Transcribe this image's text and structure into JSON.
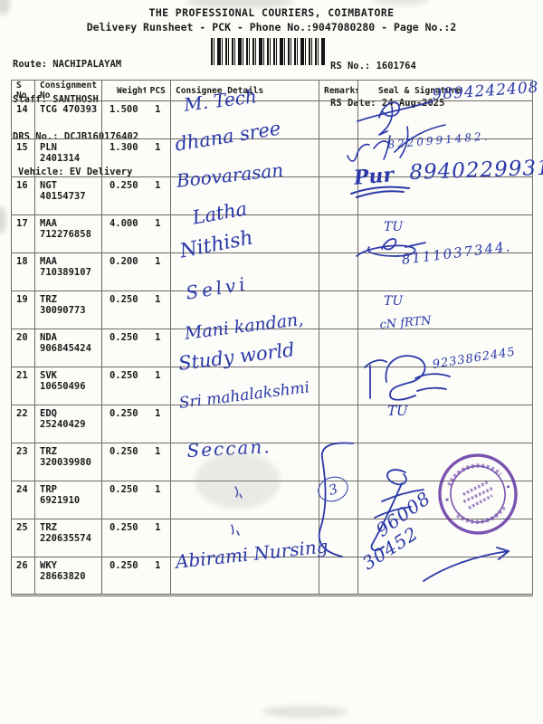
{
  "header": {
    "title": "THE PROFESSIONAL COURIERS, COIMBATORE",
    "subtitle": "Delivery Runsheet - PCK - Phone No.:9047080280 - Page No.:2",
    "stray_mark": "-"
  },
  "info": {
    "route": "Route: NACHIPALAYAM",
    "staff": "Staff: SANTHOSH",
    "drs_no": "DRS No.: DCJB160176402",
    "vehicle": "Vehicle: EV Delivery",
    "rs_no": "RS No.: 1601764",
    "rs_date": "RS Date: 24-Aug-2025"
  },
  "table": {
    "columns": [
      "S No",
      "Consignment No",
      "Weight",
      "PCS",
      "Consignee Details",
      "Remarks",
      "Seal & Signature"
    ],
    "rows": [
      {
        "sno": "14",
        "consignment": "TCG 470393",
        "weight": "1.500",
        "pcs": "1"
      },
      {
        "sno": "15",
        "consignment": "PLN 2401314",
        "weight": "1.300",
        "pcs": "1"
      },
      {
        "sno": "16",
        "consignment": "NGT 40154737",
        "weight": "0.250",
        "pcs": "1"
      },
      {
        "sno": "17",
        "consignment": "MAA 712276858",
        "weight": "4.000",
        "pcs": "1"
      },
      {
        "sno": "18",
        "consignment": "MAA 710389107",
        "weight": "0.200",
        "pcs": "1"
      },
      {
        "sno": "19",
        "consignment": "TRZ 30090773",
        "weight": "0.250",
        "pcs": "1"
      },
      {
        "sno": "20",
        "consignment": "NDA 906845424",
        "weight": "0.250",
        "pcs": "1"
      },
      {
        "sno": "21",
        "consignment": "SVK 10650496",
        "weight": "0.250",
        "pcs": "1"
      },
      {
        "sno": "22",
        "consignment": "EDQ 25240429",
        "weight": "0.250",
        "pcs": "1"
      },
      {
        "sno": "23",
        "consignment": "TRZ 320039980",
        "weight": "0.250",
        "pcs": "1"
      },
      {
        "sno": "24",
        "consignment": "TRP 6921910",
        "weight": "0.250",
        "pcs": "1"
      },
      {
        "sno": "25",
        "consignment": "TRZ 220635574",
        "weight": "0.250",
        "pcs": "1"
      },
      {
        "sno": "26",
        "consignment": "WKY 28663820",
        "weight": "0.250",
        "pcs": "1"
      }
    ]
  },
  "handwriting": {
    "r14_consignee": "M. Tech",
    "r14_phone": "9894242408",
    "r15_consignee": "dhana sree",
    "r15_phone": "8220991482.",
    "r16_consignee": "Boovarasan",
    "r16_sig": "Pur",
    "r16_phone": "8940229931",
    "r17_consignee": "Latha",
    "r17_sig": "TU",
    "r18_consignee": "Nithish",
    "r18_phone": "8111037344.",
    "r19_consignee": "Selvi",
    "r19_sig": "TU",
    "r20_consignee": "Mani kandan,",
    "r20_sig": "cN fRTN",
    "r21_consignee": "Study world",
    "r21_phone": "9233862445",
    "r22_consignee": "Sri mahalakshmi",
    "r22_sig": "TU",
    "r23_consignee": "Seccan.",
    "r26_consignee": "Abirami Nursing",
    "group_count": "3",
    "bottom_number_top": "96008",
    "bottom_number_bottom": "30452"
  },
  "colors": {
    "ink": "#2a38a8",
    "stamp": "#5d2fa0",
    "paper": "#fcfcf8"
  }
}
